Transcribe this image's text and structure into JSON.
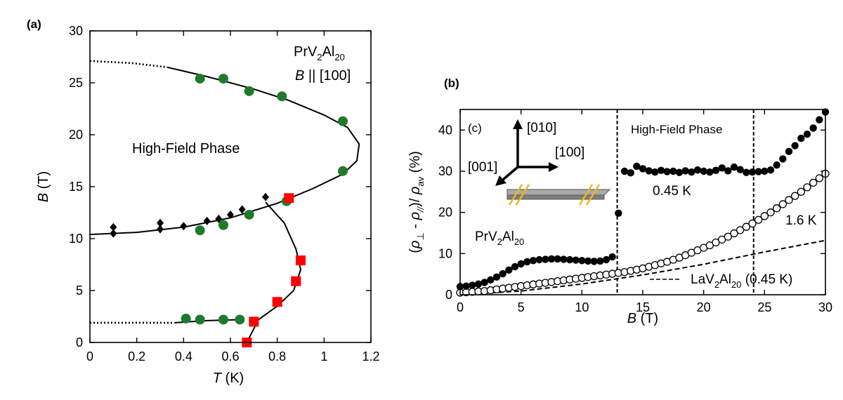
{
  "panel_labels": {
    "a": "(a)",
    "b": "(b)",
    "c": "(c)"
  },
  "chart_data": [
    {
      "type": "scatter",
      "panel": "(a)",
      "xlabel": {
        "italic": "T",
        "rest": " (K)"
      },
      "ylabel": {
        "italic": "B",
        "rest": " (T)"
      },
      "xlim": [
        0,
        1.2
      ],
      "ylim": [
        0,
        30
      ],
      "xticks": [
        "0",
        "0.2",
        "0.4",
        "0.6",
        "0.8",
        "1",
        "1.2"
      ],
      "yticks": [
        "0",
        "5",
        "10",
        "15",
        "20",
        "25",
        "30"
      ],
      "annotations": {
        "material": {
          "base": "PrV",
          "s1": "2",
          "mid": "Al",
          "s2": "20"
        },
        "field_dir": {
          "italic": "B",
          "rest": " || [100]"
        },
        "phase": "High-Field Phase"
      },
      "colors": {
        "green": "#1f7a2e",
        "red": "#ff0000",
        "black": "#000000"
      },
      "series": [
        {
          "marker": "green-circle",
          "x": [
            0.47,
            0.57,
            0.68,
            0.82,
            1.08,
            1.08,
            0.84,
            0.68,
            0.57,
            0.47,
            0.41,
            0.47,
            0.57,
            0.64
          ],
          "y": [
            25.4,
            25.4,
            24.2,
            23.7,
            21.3,
            16.5,
            13.6,
            12.3,
            11.3,
            10.8,
            2.3,
            2.2,
            2.2,
            2.2
          ]
        },
        {
          "marker": "red-square",
          "x": [
            0.67,
            0.7,
            0.8,
            0.88,
            0.9,
            0.85
          ],
          "y": [
            0.0,
            2.0,
            3.9,
            5.9,
            7.9,
            13.9
          ]
        },
        {
          "marker": "black-diamond",
          "x": [
            0.1,
            0.1,
            0.3,
            0.3,
            0.4,
            0.5,
            0.55,
            0.6,
            0.65,
            0.75
          ],
          "y": [
            11.1,
            10.5,
            11.5,
            10.9,
            11.2,
            11.7,
            11.9,
            12.3,
            12.8,
            14.0
          ]
        }
      ],
      "curves": {
        "dotted_top": [
          [
            0,
            27.1
          ],
          [
            0.18,
            26.9
          ],
          [
            0.33,
            26.5
          ]
        ],
        "upper_boundary": [
          [
            0.33,
            26.5
          ],
          [
            0.5,
            25.6
          ],
          [
            0.7,
            24.4
          ],
          [
            0.85,
            23.3
          ],
          [
            1.0,
            21.9
          ],
          [
            1.1,
            20.7
          ],
          [
            1.15,
            19.1
          ],
          [
            1.14,
            17.5
          ],
          [
            1.08,
            16.2
          ],
          [
            0.95,
            14.8
          ],
          [
            0.8,
            13.4
          ],
          [
            0.6,
            12.0
          ],
          [
            0.4,
            11.1
          ],
          [
            0.2,
            10.6
          ],
          [
            0,
            10.4
          ]
        ],
        "branch": [
          [
            0.75,
            13.5
          ],
          [
            0.83,
            11.5
          ],
          [
            0.88,
            9.0
          ],
          [
            0.9,
            7.0
          ],
          [
            0.87,
            5.0
          ],
          [
            0.8,
            3.5
          ],
          [
            0.72,
            2.2
          ],
          [
            0.67,
            0.0
          ]
        ],
        "lower_boundary": [
          [
            0.36,
            1.9
          ],
          [
            0.5,
            2.1
          ],
          [
            0.65,
            2.2
          ]
        ],
        "dotted_bottom": [
          [
            0,
            1.9
          ],
          [
            0.36,
            1.9
          ]
        ]
      }
    },
    {
      "type": "scatter",
      "panel": "(b)",
      "xlabel": {
        "italic": "B",
        "rest": " (T)"
      },
      "xlim": [
        0,
        30
      ],
      "ylim": [
        0,
        45
      ],
      "xticks": [
        "0",
        "5",
        "10",
        "15",
        "20",
        "25",
        "30"
      ],
      "yticks": [
        "0",
        "10",
        "20",
        "30",
        "40"
      ],
      "vlines": [
        12.9,
        24.1
      ],
      "annotations": {
        "phase": "High-Field Phase",
        "t_045": "0.45 K",
        "t_16": "1.6 K",
        "la_sample": {
          "base": "LaV",
          "s1": "2",
          "mid": "Al",
          "s2": "20",
          "tail": " (0.45 K)"
        },
        "pr_sample": {
          "base": "PrV",
          "s1": "2",
          "mid": "Al",
          "s2": "20"
        },
        "axis_010": "[010]",
        "axis_001": "[001]",
        "axis_100": "[100]"
      },
      "series": [
        {
          "name": "0.45 K",
          "marker": "filled-circle",
          "x": [
            0,
            0.5,
            1,
            1.5,
            2,
            2.5,
            3,
            3.5,
            4,
            4.5,
            5,
            5.5,
            6,
            6.5,
            7,
            7.5,
            8,
            8.5,
            9,
            9.5,
            10,
            10.5,
            11,
            11.5,
            12,
            12.5,
            13,
            13.5,
            14,
            14.5,
            15,
            15.5,
            16,
            16.5,
            17,
            17.5,
            18,
            18.5,
            19,
            19.5,
            20,
            20.5,
            21,
            21.5,
            22,
            22.5,
            23,
            23.5,
            24,
            24.5,
            25,
            25.5,
            26,
            26.5,
            27,
            27.5,
            28,
            28.5,
            29,
            29.5,
            30
          ],
          "y": [
            2.0,
            2.1,
            2.3,
            2.6,
            3.0,
            3.6,
            4.3,
            5.1,
            6.0,
            6.8,
            7.5,
            8.0,
            8.3,
            8.5,
            8.6,
            8.7,
            8.7,
            8.6,
            8.5,
            8.4,
            8.3,
            8.2,
            8.1,
            8.2,
            8.5,
            9.2,
            19.8,
            30.0,
            29.6,
            31.2,
            30.6,
            30.1,
            29.8,
            30.2,
            29.9,
            30.0,
            29.7,
            30.1,
            29.8,
            30.3,
            30.0,
            29.8,
            30.2,
            30.8,
            30.1,
            31.0,
            30.4,
            29.7,
            29.8,
            29.9,
            30.0,
            30.3,
            31.5,
            33.0,
            34.8,
            36.2,
            38.0,
            39.0,
            40.5,
            42.5,
            44.4
          ]
        },
        {
          "name": "1.6 K",
          "marker": "open-circle",
          "x": [
            0,
            0.5,
            1,
            1.5,
            2,
            2.5,
            3,
            3.5,
            4,
            4.5,
            5,
            5.5,
            6,
            6.5,
            7,
            7.5,
            8,
            8.5,
            9,
            9.5,
            10,
            10.5,
            11,
            11.5,
            12,
            12.5,
            13,
            13.5,
            14,
            14.5,
            15,
            15.5,
            16,
            16.5,
            17,
            17.5,
            18,
            18.5,
            19,
            19.5,
            20,
            20.5,
            21,
            21.5,
            22,
            22.5,
            23,
            23.5,
            24,
            24.5,
            25,
            25.5,
            26,
            26.5,
            27,
            27.5,
            28,
            28.5,
            29,
            29.5,
            30
          ],
          "y": [
            0.5,
            0.6,
            0.7,
            0.8,
            0.9,
            1.1,
            1.3,
            1.5,
            1.7,
            1.9,
            2.1,
            2.3,
            2.5,
            2.7,
            2.9,
            3.1,
            3.3,
            3.5,
            3.7,
            3.9,
            4.1,
            4.3,
            4.5,
            4.7,
            4.9,
            5.1,
            5.3,
            5.5,
            5.8,
            6.1,
            6.4,
            6.8,
            7.2,
            7.6,
            8.0,
            8.5,
            9.0,
            9.6,
            10.2,
            10.8,
            11.4,
            12.0,
            12.7,
            13.4,
            14.1,
            14.9,
            15.7,
            16.5,
            17.3,
            18.2,
            19.1,
            20.0,
            21.0,
            22.0,
            23.0,
            24.0,
            25.0,
            26.1,
            27.2,
            28.3,
            29.4
          ]
        },
        {
          "name": "LaV2Al20 (0.45 K)",
          "style": "dashed",
          "x": [
            0,
            5,
            10,
            15,
            20,
            25,
            30
          ],
          "y": [
            0,
            0.9,
            2.6,
            4.8,
            7.4,
            10.4,
            13.2
          ]
        }
      ]
    }
  ]
}
